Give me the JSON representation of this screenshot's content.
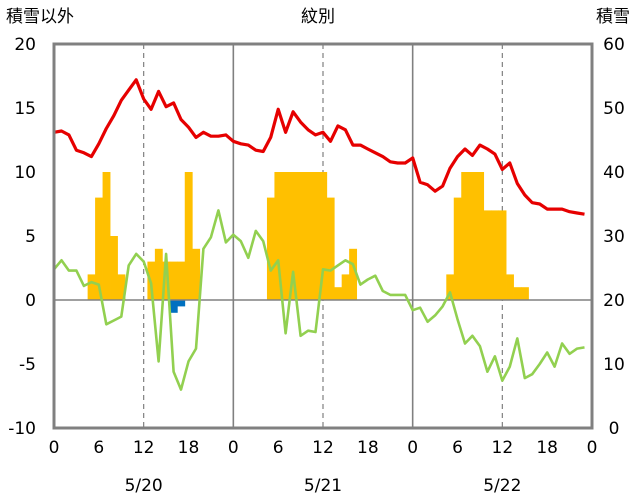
{
  "chart_data": {
    "type": "bar+line",
    "title": "紋別",
    "left_axis_title": "積雪以外",
    "right_axis_title": "積雪",
    "y_left": {
      "min": -10,
      "max": 20,
      "ticks": [
        "-10",
        "-5",
        "0",
        "5",
        "10",
        "15",
        "20"
      ]
    },
    "y_right": {
      "min": 0,
      "max": 60,
      "ticks": [
        "0",
        "10",
        "20",
        "30",
        "40",
        "50",
        "60"
      ]
    },
    "x": {
      "min": 0,
      "max": 72,
      "tick_hours": [
        0,
        6,
        12,
        18,
        24,
        30,
        36,
        42,
        48,
        54,
        60,
        66,
        72
      ],
      "tick_labels": [
        "0",
        "6",
        "12",
        "18",
        "0",
        "6",
        "12",
        "18",
        "0",
        "6",
        "12",
        "18",
        "0"
      ]
    },
    "day_labels": [
      {
        "hour": 12,
        "label": "5/20"
      },
      {
        "hour": 36,
        "label": "5/21"
      },
      {
        "hour": 60,
        "label": "5/22"
      }
    ],
    "grid": {
      "day_lines": [
        24,
        48
      ],
      "dashed_lines": [
        12,
        36,
        60
      ],
      "zero_line": true
    },
    "colors": {
      "red": "#e60000",
      "green": "#92d050",
      "orange": "#ffc000",
      "blue": "#0070c0",
      "axis": "#808080"
    },
    "series": [
      {
        "kind": "line",
        "axis": "left",
        "color": "#e60000",
        "x": [
          0,
          1,
          2,
          3,
          4,
          5,
          6,
          7,
          8,
          9,
          10,
          11,
          12,
          13,
          14,
          15,
          16,
          17,
          18,
          19,
          20,
          21,
          22,
          23,
          24,
          25,
          26,
          27,
          28,
          29,
          30,
          31,
          32,
          33,
          34,
          35,
          36,
          37,
          38,
          39,
          40,
          41,
          42,
          43,
          44,
          45,
          46,
          47,
          48,
          49,
          50,
          51,
          52,
          53,
          54,
          55,
          56,
          57,
          58,
          59,
          60,
          61,
          62,
          63,
          64,
          65,
          66,
          67,
          68,
          69,
          70,
          71
        ],
        "y": [
          13.1,
          13.2,
          12.9,
          11.7,
          11.5,
          11.2,
          12.2,
          13.4,
          14.4,
          15.6,
          16.4,
          17.2,
          15.7,
          14.9,
          16.3,
          15.1,
          15.4,
          14.1,
          13.5,
          12.7,
          13.1,
          12.8,
          12.8,
          12.9,
          12.4,
          12.2,
          12.1,
          11.7,
          11.6,
          12.7,
          14.9,
          13.1,
          14.7,
          13.9,
          13.3,
          12.9,
          13.1,
          12.4,
          13.6,
          13.3,
          12.1,
          12.1,
          11.8,
          11.5,
          11.2,
          10.8,
          10.7,
          10.7,
          11.1,
          9.2,
          9.0,
          8.5,
          8.9,
          10.3,
          11.2,
          11.8,
          11.3,
          12.1,
          11.8,
          11.4,
          10.2,
          10.7,
          9.1,
          8.2,
          7.6,
          7.5,
          7.1,
          7.1,
          7.1,
          6.9,
          6.8,
          6.7
        ]
      },
      {
        "kind": "line",
        "axis": "left",
        "color": "#92d050",
        "x": [
          0,
          1,
          2,
          3,
          4,
          5,
          6,
          7,
          8,
          9,
          10,
          11,
          12,
          13,
          14,
          15,
          16,
          17,
          18,
          19,
          20,
          21,
          22,
          23,
          24,
          25,
          26,
          27,
          28,
          29,
          30,
          31,
          32,
          33,
          34,
          35,
          36,
          37,
          38,
          39,
          40,
          41,
          42,
          43,
          44,
          45,
          46,
          47,
          48,
          49,
          50,
          51,
          52,
          53,
          54,
          55,
          56,
          57,
          58,
          59,
          60,
          61,
          62,
          63,
          64,
          65,
          66,
          67,
          68,
          69,
          70,
          71
        ],
        "y": [
          2.4,
          3.1,
          2.3,
          2.3,
          1.1,
          1.4,
          1.2,
          -1.9,
          -1.6,
          -1.3,
          2.7,
          3.6,
          3.0,
          1.3,
          -4.8,
          3.6,
          -5.6,
          -7.0,
          -4.8,
          -3.8,
          4.0,
          4.9,
          7.0,
          4.5,
          5.1,
          4.6,
          3.3,
          5.4,
          4.6,
          2.3,
          3.1,
          -2.6,
          2.2,
          -2.8,
          -2.4,
          -2.5,
          2.4,
          2.3,
          2.7,
          3.1,
          2.8,
          1.2,
          1.6,
          1.9,
          0.7,
          0.4,
          0.4,
          0.4,
          -0.8,
          -0.6,
          -1.7,
          -1.2,
          -0.5,
          0.6,
          -1.5,
          -3.4,
          -2.8,
          -3.6,
          -5.6,
          -4.4,
          -6.3,
          -5.2,
          -3.0,
          -6.1,
          -5.8,
          -5.0,
          -4.1,
          -5.2,
          -3.4,
          -4.2,
          -3.8,
          -3.7
        ]
      },
      {
        "kind": "bar",
        "axis": "left",
        "color": "#ffc000",
        "x": [
          5,
          6,
          7,
          8,
          9,
          13,
          14,
          15,
          16,
          17,
          18,
          19,
          29,
          30,
          31,
          32,
          33,
          34,
          35,
          36,
          37,
          38,
          39,
          40,
          53,
          54,
          55,
          56,
          57,
          58,
          59,
          60,
          61,
          62,
          63,
          64
        ],
        "y": [
          2,
          8,
          10,
          5,
          2,
          3,
          4,
          3,
          3,
          3,
          10,
          4,
          8,
          10,
          10,
          10,
          10,
          10,
          10,
          10,
          8,
          1,
          2,
          4,
          2,
          8,
          10,
          10,
          10,
          7,
          7,
          7,
          2,
          1,
          1,
          0
        ]
      },
      {
        "kind": "bar",
        "axis": "left",
        "color": "#0070c0",
        "x": [
          16,
          17
        ],
        "y": [
          -1,
          -0.5
        ]
      }
    ]
  }
}
